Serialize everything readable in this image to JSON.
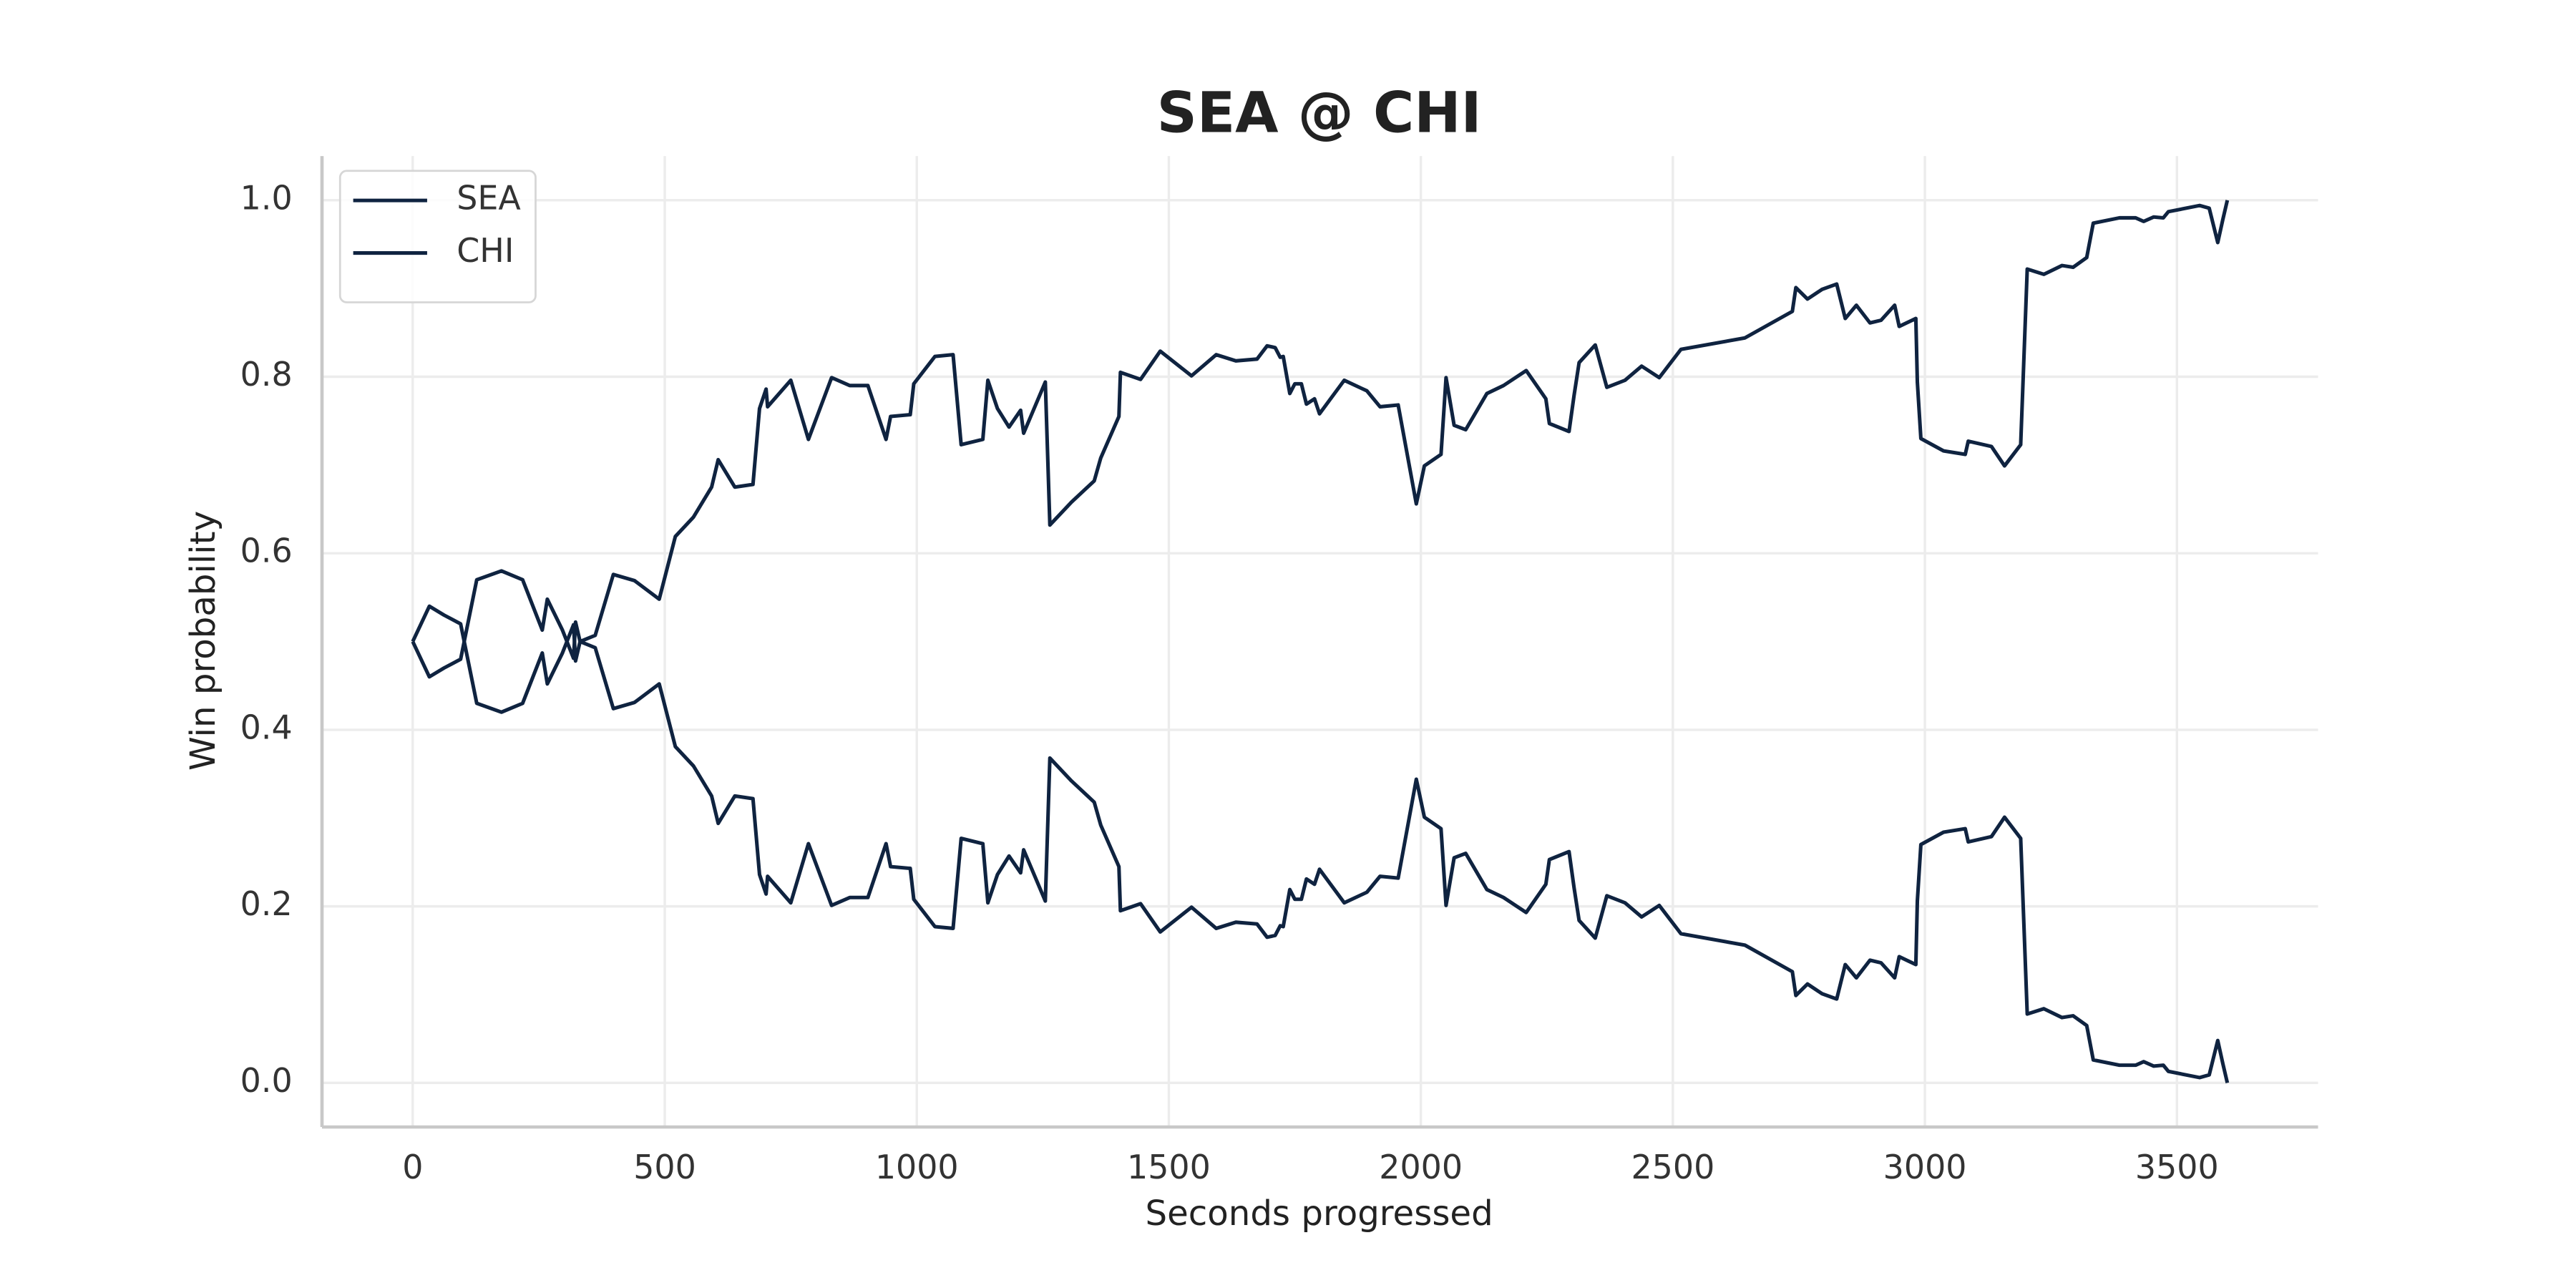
{
  "chart_data": {
    "type": "line",
    "title": "SEA @ CHI",
    "xlabel": "Seconds progressed",
    "ylabel": "Win probability",
    "x": [
      0,
      33,
      62,
      95,
      127,
      176,
      218,
      257,
      267,
      297,
      319,
      323,
      332,
      362,
      398,
      440,
      489,
      521,
      557,
      593,
      606,
      639,
      675,
      688,
      701,
      704,
      750,
      785,
      831,
      867,
      903,
      939,
      948,
      987,
      994,
      1036,
      1072,
      1088,
      1131,
      1141,
      1160,
      1183,
      1206,
      1212,
      1255,
      1264,
      1307,
      1352,
      1365,
      1401,
      1404,
      1444,
      1483,
      1545,
      1594,
      1633,
      1675,
      1695,
      1711,
      1721,
      1727,
      1740,
      1750,
      1763,
      1773,
      1789,
      1799,
      1848,
      1893,
      1919,
      1955,
      1991,
      2007,
      2040,
      2050,
      2066,
      2089,
      2131,
      2164,
      2209,
      2248,
      2255,
      2294,
      2304,
      2314,
      2346,
      2369,
      2405,
      2438,
      2473,
      2516,
      2643,
      2737,
      2744,
      2767,
      2796,
      2825,
      2842,
      2864,
      2891,
      2913,
      2940,
      2949,
      2982,
      2985,
      2992,
      3037,
      3080,
      3086,
      3132,
      3158,
      3190,
      3203,
      3236,
      3272,
      3294,
      3321,
      3334,
      3386,
      3418,
      3434,
      3454,
      3473,
      3483,
      3545,
      3564,
      3581,
      3591,
      3600
    ],
    "series": [
      {
        "name": "SEA",
        "color": "#0f2340",
        "values": [
          0.5,
          0.46,
          0.47,
          0.48,
          0.57,
          0.58,
          0.57,
          0.513,
          0.548,
          0.513,
          0.481,
          0.522,
          0.5,
          0.507,
          0.576,
          0.569,
          0.548,
          0.619,
          0.641,
          0.675,
          0.706,
          0.675,
          0.678,
          0.764,
          0.786,
          0.766,
          0.796,
          0.729,
          0.799,
          0.79,
          0.79,
          0.729,
          0.755,
          0.757,
          0.792,
          0.823,
          0.825,
          0.723,
          0.729,
          0.796,
          0.764,
          0.743,
          0.762,
          0.736,
          0.794,
          0.632,
          0.658,
          0.682,
          0.708,
          0.755,
          0.805,
          0.797,
          0.829,
          0.801,
          0.825,
          0.818,
          0.82,
          0.835,
          0.833,
          0.822,
          0.823,
          0.781,
          0.792,
          0.792,
          0.769,
          0.775,
          0.758,
          0.796,
          0.784,
          0.766,
          0.768,
          0.656,
          0.699,
          0.712,
          0.799,
          0.745,
          0.74,
          0.781,
          0.79,
          0.807,
          0.775,
          0.747,
          0.738,
          0.779,
          0.816,
          0.836,
          0.788,
          0.796,
          0.812,
          0.799,
          0.831,
          0.844,
          0.874,
          0.901,
          0.888,
          0.899,
          0.905,
          0.866,
          0.881,
          0.861,
          0.864,
          0.881,
          0.857,
          0.866,
          0.794,
          0.73,
          0.716,
          0.712,
          0.727,
          0.721,
          0.699,
          0.723,
          0.922,
          0.916,
          0.926,
          0.924,
          0.935,
          0.974,
          0.98,
          0.98,
          0.976,
          0.981,
          0.98,
          0.987,
          0.994,
          0.991,
          0.952,
          0.978,
          1.0
        ]
      },
      {
        "name": "CHI",
        "color": "#0f2340",
        "values": [
          0.5,
          0.54,
          0.53,
          0.52,
          0.43,
          0.42,
          0.43,
          0.487,
          0.452,
          0.487,
          0.519,
          0.478,
          0.5,
          0.493,
          0.424,
          0.431,
          0.452,
          0.381,
          0.359,
          0.325,
          0.294,
          0.325,
          0.322,
          0.236,
          0.214,
          0.234,
          0.204,
          0.271,
          0.201,
          0.21,
          0.21,
          0.271,
          0.245,
          0.243,
          0.208,
          0.177,
          0.175,
          0.277,
          0.271,
          0.204,
          0.236,
          0.257,
          0.238,
          0.264,
          0.206,
          0.368,
          0.342,
          0.318,
          0.292,
          0.245,
          0.195,
          0.203,
          0.171,
          0.199,
          0.175,
          0.182,
          0.18,
          0.165,
          0.167,
          0.178,
          0.177,
          0.219,
          0.208,
          0.208,
          0.231,
          0.225,
          0.242,
          0.204,
          0.216,
          0.234,
          0.232,
          0.344,
          0.301,
          0.288,
          0.201,
          0.255,
          0.26,
          0.219,
          0.21,
          0.193,
          0.225,
          0.253,
          0.262,
          0.221,
          0.184,
          0.164,
          0.212,
          0.204,
          0.188,
          0.201,
          0.169,
          0.156,
          0.126,
          0.099,
          0.112,
          0.101,
          0.095,
          0.134,
          0.119,
          0.139,
          0.136,
          0.119,
          0.143,
          0.134,
          0.206,
          0.27,
          0.284,
          0.288,
          0.273,
          0.279,
          0.301,
          0.277,
          0.078,
          0.084,
          0.074,
          0.076,
          0.065,
          0.026,
          0.02,
          0.02,
          0.024,
          0.019,
          0.02,
          0.013,
          0.006,
          0.009,
          0.048,
          0.022,
          0.0
        ]
      }
    ],
    "xlim": [
      -180,
      3780
    ],
    "xticks": [
      0,
      500,
      1000,
      1500,
      2000,
      2500,
      3000,
      3500
    ],
    "ylim": [
      -0.05,
      1.05
    ],
    "yticks": [
      {
        "value": 0,
        "label": "0.0"
      },
      0.2,
      0.4,
      0.6,
      0.8,
      {
        "value": 1,
        "label": "1.0"
      }
    ],
    "grid": true,
    "legend": "upper left"
  }
}
